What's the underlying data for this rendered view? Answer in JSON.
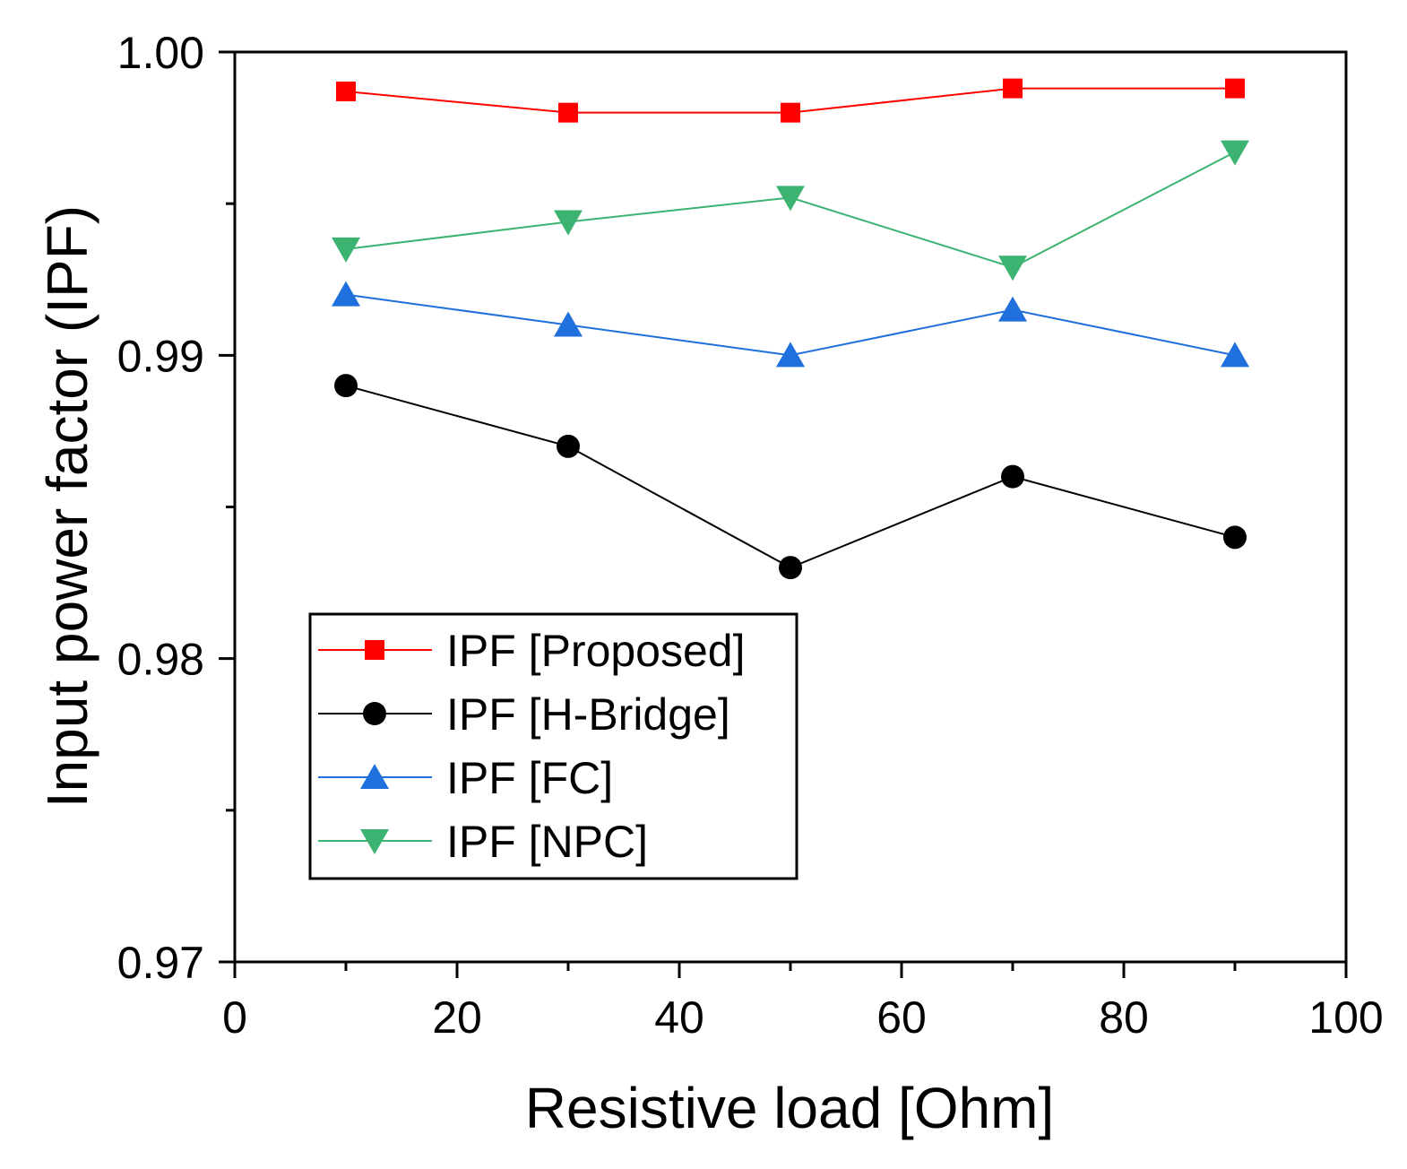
{
  "chart_data": {
    "type": "line",
    "title": "",
    "xlabel": "Resistive load [Ohm]",
    "ylabel": "Input power factor (IPF)",
    "xlim": [
      0,
      100
    ],
    "ylim": [
      0.97,
      1.0
    ],
    "x_ticks": [
      0,
      20,
      40,
      60,
      80,
      100
    ],
    "x_tick_labels": [
      "0",
      "20",
      "40",
      "60",
      "80",
      "100"
    ],
    "x_minor_ticks": [
      10,
      30,
      50,
      70,
      90
    ],
    "y_ticks": [
      0.97,
      0.98,
      0.99,
      1.0
    ],
    "y_tick_labels": [
      "0.97",
      "0.98",
      "0.99",
      "1.00"
    ],
    "y_minor_ticks": [
      0.975,
      0.985,
      0.995
    ],
    "grid": false,
    "legend_position": "bottom-left",
    "x": [
      10,
      30,
      50,
      70,
      90
    ],
    "series": [
      {
        "name": "IPF [Proposed]",
        "color": "#ff0000",
        "marker": "square",
        "values": [
          0.9987,
          0.998,
          0.998,
          0.9988,
          0.9988
        ]
      },
      {
        "name": "IPF [H-Bridge]",
        "color": "#000000",
        "marker": "circle",
        "values": [
          0.989,
          0.987,
          0.983,
          0.986,
          0.984
        ]
      },
      {
        "name": "IPF [FC]",
        "color": "#1f6fdc",
        "marker": "triangle-up",
        "values": [
          0.992,
          0.991,
          0.99,
          0.9915,
          0.99
        ]
      },
      {
        "name": "IPF [NPC]",
        "color": "#3cb371",
        "marker": "triangle-down",
        "values": [
          0.9935,
          0.9944,
          0.9952,
          0.9929,
          0.9967
        ]
      }
    ]
  }
}
